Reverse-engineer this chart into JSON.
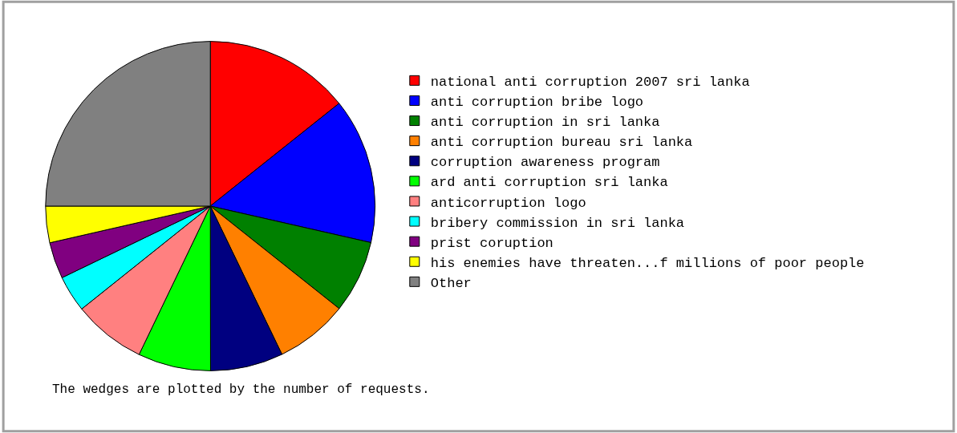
{
  "chart_data": {
    "type": "pie",
    "categories": [
      "national anti corruption 2007 sri lanka",
      "anti corruption bribe logo",
      "anti corruption in sri lanka",
      "anti corruption bureau sri lanka",
      "corruption awareness program",
      "ard anti corruption sri lanka",
      "anticorruption logo",
      "bribery commission in sri lanka",
      "prist coruption",
      "his enemies have threaten...f millions of poor people",
      "Other"
    ],
    "values": [
      14.28,
      14.28,
      7.14,
      7.14,
      7.14,
      7.14,
      7.14,
      3.58,
      3.58,
      3.58,
      25
    ],
    "colors": [
      "#ff0000",
      "#0000ff",
      "#008000",
      "#ff8000",
      "#000080",
      "#00ff00",
      "#ff8080",
      "#00ffff",
      "#800080",
      "#ffff00",
      "#808080"
    ],
    "legend": "right",
    "annotations": [
      "The wedges are plotted by the number of requests."
    ]
  }
}
